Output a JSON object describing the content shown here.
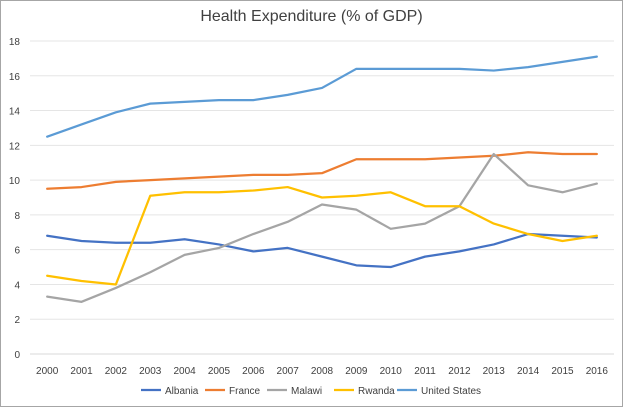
{
  "chart_data": {
    "type": "line",
    "title": "Health Expenditure (% of GDP)",
    "xlabel": "",
    "ylabel": "",
    "x": [
      "2000",
      "2001",
      "2002",
      "2003",
      "2004",
      "2005",
      "2006",
      "2007",
      "2008",
      "2009",
      "2010",
      "2011",
      "2012",
      "2013",
      "2014",
      "2015",
      "2016"
    ],
    "ylim": [
      0,
      18
    ],
    "yticks": [
      0,
      2,
      4,
      6,
      8,
      10,
      12,
      14,
      16,
      18
    ],
    "grid": true,
    "legend": "bottom",
    "series": [
      {
        "name": "Albania",
        "color": "#4472c4",
        "values": [
          6.8,
          6.5,
          6.4,
          6.4,
          6.6,
          6.3,
          5.9,
          6.1,
          5.6,
          5.1,
          5.0,
          5.6,
          5.9,
          6.3,
          6.9,
          6.8,
          6.7
        ]
      },
      {
        "name": "France",
        "color": "#ed7d31",
        "values": [
          9.5,
          9.6,
          9.9,
          10.0,
          10.1,
          10.2,
          10.3,
          10.3,
          10.4,
          11.2,
          11.2,
          11.2,
          11.3,
          11.4,
          11.6,
          11.5,
          11.5
        ]
      },
      {
        "name": "Malawi",
        "color": "#a5a5a5",
        "values": [
          3.3,
          3.0,
          3.8,
          4.7,
          5.7,
          6.1,
          6.9,
          7.6,
          8.6,
          8.3,
          7.2,
          7.5,
          8.5,
          11.5,
          9.7,
          9.3,
          9.8
        ]
      },
      {
        "name": "Rwanda",
        "color": "#ffc000",
        "values": [
          4.5,
          4.2,
          4.0,
          9.1,
          9.3,
          9.3,
          9.4,
          9.6,
          9.0,
          9.1,
          9.3,
          8.5,
          8.5,
          7.5,
          6.9,
          6.5,
          6.8
        ]
      },
      {
        "name": "United States",
        "color": "#5b9bd5",
        "values": [
          12.5,
          13.2,
          13.9,
          14.4,
          14.5,
          14.6,
          14.6,
          14.9,
          15.3,
          16.4,
          16.4,
          16.4,
          16.4,
          16.3,
          16.5,
          16.8,
          17.1
        ]
      }
    ]
  }
}
